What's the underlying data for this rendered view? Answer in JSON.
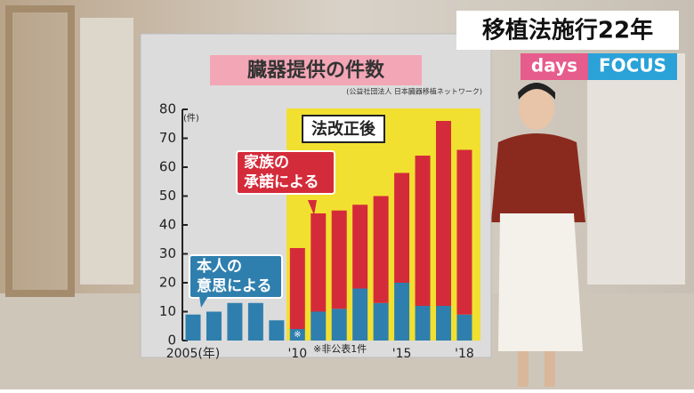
{
  "header": {
    "banner": "移植法施行22年",
    "logo_left": "days",
    "logo_right": "FOCUS"
  },
  "chart_data": {
    "type": "stacked-bar",
    "title": "臓器提供の件数",
    "source": "(公益社団法人 日本臓器移植ネットワーク)",
    "y_unit": "(件)",
    "annotation": "法改正後",
    "note": "※非公表1件",
    "note_marker": "※",
    "categories": [
      "2005(年)",
      null,
      null,
      null,
      null,
      "'10",
      null,
      null,
      null,
      null,
      "'15",
      null,
      null,
      "'18"
    ],
    "series": [
      {
        "name": "本人の\n意思による",
        "color": "#2f7fae",
        "values": [
          9,
          10,
          13,
          13,
          7,
          4,
          10,
          11,
          18,
          13,
          20,
          12,
          12,
          9
        ]
      },
      {
        "name": "家族の\n承諾による",
        "color": "#d42b3a",
        "values": [
          0,
          0,
          0,
          0,
          0,
          28,
          34,
          34,
          29,
          37,
          38,
          52,
          64,
          57
        ]
      }
    ],
    "ylim": [
      0,
      80
    ],
    "yticks": [
      0,
      10,
      20,
      30,
      40,
      50,
      60,
      70,
      80
    ]
  }
}
